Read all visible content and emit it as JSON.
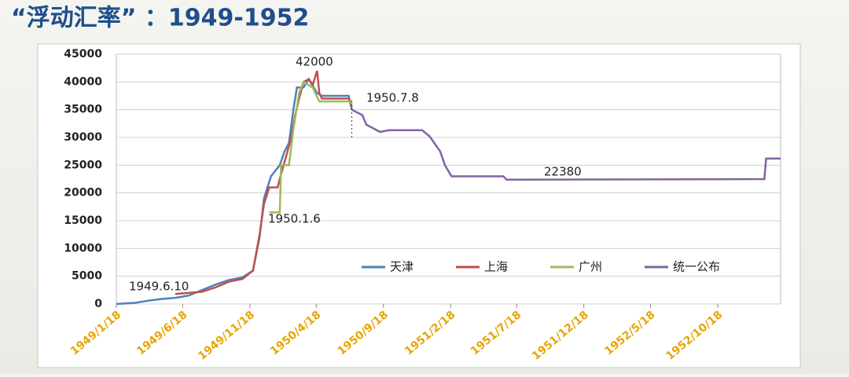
{
  "chart_data": {
    "type": "line",
    "title": "“浮动汇率” ：1949-1952",
    "xlim": [
      "1949/1/18",
      "1953/3/10"
    ],
    "xticks": [
      "1949/1/18",
      "1949/6/18",
      "1949/11/18",
      "1950/4/18",
      "1950/9/18",
      "1951/2/18",
      "1951/7/18",
      "1951/12/18",
      "1952/5/18",
      "1952/10/18"
    ],
    "ylim": [
      0,
      45000
    ],
    "yticks": [
      0,
      5000,
      10000,
      15000,
      20000,
      25000,
      30000,
      35000,
      40000,
      45000
    ],
    "grid": true,
    "legend": "inside-bottom",
    "series": [
      {
        "name": "天津",
        "color": "#4f81bd",
        "x": [
          "1949/1/18",
          "1949/3/1",
          "1949/4/1",
          "1949/5/1",
          "1949/6/1",
          "1949/7/1",
          "1949/8/1",
          "1949/9/1",
          "1949/10/1",
          "1949/11/1",
          "1949/11/25",
          "1949/12/10",
          "1949/12/20",
          "1949/12/28",
          "1950/1/5",
          "1950/1/25",
          "1950/2/5",
          "1950/2/15",
          "1950/2/25",
          "1950/3/5",
          "1950/3/20",
          "1950/4/1",
          "1950/4/20",
          "1950/5/1",
          "1950/7/1",
          "1950/7/8"
        ],
        "values": [
          0,
          200,
          600,
          900,
          1100,
          1500,
          2500,
          3500,
          4300,
          4800,
          6000,
          12000,
          19000,
          21000,
          23000,
          25000,
          27500,
          29000,
          35000,
          39000,
          39000,
          40500,
          38000,
          37500,
          37500,
          35000
        ]
      },
      {
        "name": "上海",
        "color": "#c0504d",
        "x": [
          "1949/6/1",
          "1949/7/1",
          "1949/8/1",
          "1949/9/1",
          "1949/10/1",
          "1949/11/1",
          "1949/11/25",
          "1949/12/10",
          "1949/12/20",
          "1950/1/1",
          "1950/1/20",
          "1950/1/30",
          "1950/2/10",
          "1950/2/20",
          "1950/3/1",
          "1950/3/10",
          "1950/3/20",
          "1950/4/1",
          "1950/4/10",
          "1950/4/20",
          "1950/4/25",
          "1950/5/1",
          "1950/7/1",
          "1950/7/8"
        ],
        "values": [
          1800,
          2000,
          2200,
          3000,
          4000,
          4500,
          6000,
          12500,
          18000,
          21000,
          21000,
          24000,
          27000,
          30000,
          34000,
          37000,
          40000,
          40500,
          39500,
          42000,
          38000,
          37000,
          37000,
          35500
        ]
      },
      {
        "name": "广州",
        "color": "#9bbb59",
        "x": [
          "1950/1/1",
          "1950/1/25",
          "1950/1/28",
          "1950/2/15",
          "1950/2/25",
          "1950/3/10",
          "1950/3/20",
          "1950/4/10",
          "1950/4/25",
          "1950/6/1",
          "1950/7/5",
          "1950/7/8"
        ],
        "values": [
          16500,
          16500,
          25000,
          25000,
          31500,
          38000,
          40000,
          39000,
          36500,
          36500,
          36500,
          36000
        ]
      },
      {
        "name": "统一公布",
        "color": "#8064a2",
        "x": [
          "1950/7/8",
          "1950/8/1",
          "1950/8/10",
          "1950/9/10",
          "1950/10/1",
          "1950/12/15",
          "1951/1/1",
          "1951/1/25",
          "1951/2/5",
          "1951/2/20",
          "1951/6/18",
          "1951/6/25",
          "1953/2/1",
          "1953/2/5",
          "1953/3/10"
        ],
        "values": [
          35000,
          34000,
          32300,
          31000,
          31300,
          31300,
          30200,
          27500,
          25000,
          23000,
          23000,
          22380,
          22500,
          26200,
          26200
        ]
      }
    ],
    "annotations": [
      "1949.6.10",
      "1950.1.6",
      "42000",
      "1950.7.8",
      "22380"
    ]
  }
}
